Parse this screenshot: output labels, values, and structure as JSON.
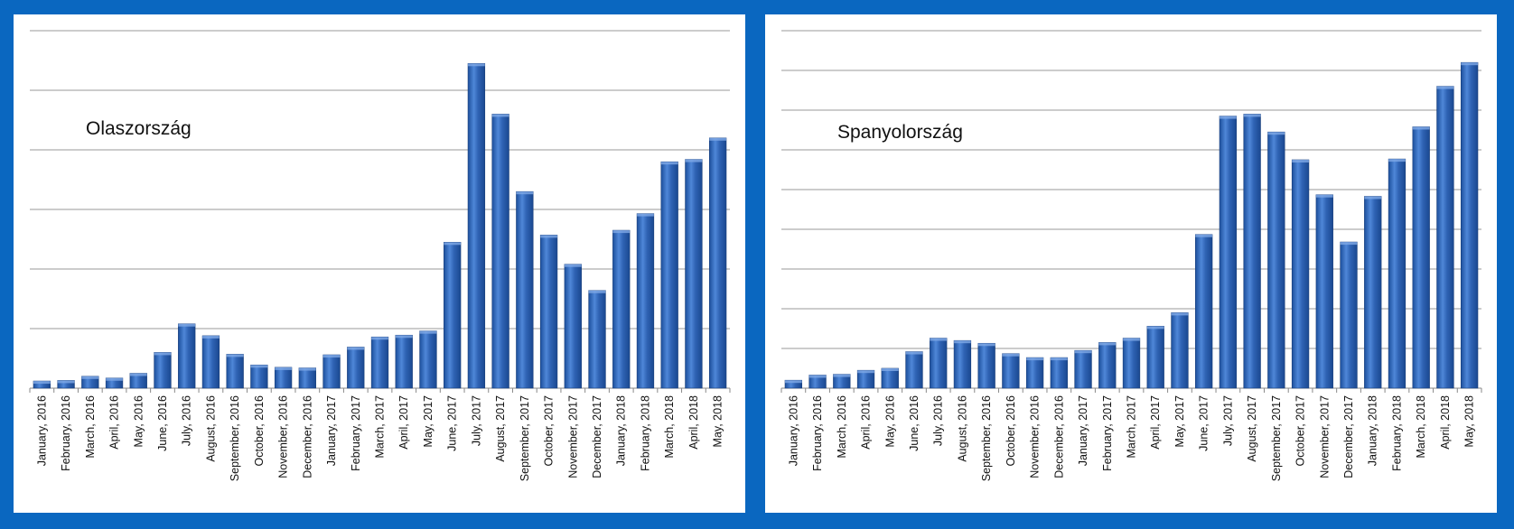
{
  "page": {
    "background": "#0a67c0"
  },
  "chart_data": [
    {
      "type": "bar",
      "title": "Olaszország",
      "xlabel": "",
      "ylabel": "",
      "ylim": [
        0,
        6
      ],
      "grid": true,
      "bar_color": "#2f63b4",
      "categories": [
        "January, 2016",
        "February, 2016",
        "March, 2016",
        "April, 2016",
        "May, 2016",
        "June, 2016",
        "July, 2016",
        "August, 2016",
        "September, 2016",
        "October, 2016",
        "November, 2016",
        "December, 2016",
        "January, 2017",
        "February, 2017",
        "March, 2017",
        "April, 2017",
        "May, 2017",
        "June, 2017",
        "July, 2017",
        "August, 2017",
        "September, 2017",
        "October, 2017",
        "November, 2017",
        "December, 2017",
        "January, 2018",
        "February, 2018",
        "March, 2018",
        "April, 2018",
        "May, 2018"
      ],
      "values": [
        0.12,
        0.13,
        0.2,
        0.17,
        0.25,
        0.6,
        1.08,
        0.88,
        0.57,
        0.39,
        0.35,
        0.34,
        0.56,
        0.69,
        0.86,
        0.89,
        0.96,
        2.45,
        5.45,
        4.6,
        3.3,
        2.57,
        2.08,
        1.64,
        2.65,
        2.93,
        3.8,
        3.84,
        4.2
      ]
    },
    {
      "type": "bar",
      "title": "Spanyolország",
      "xlabel": "",
      "ylabel": "",
      "ylim": [
        0,
        9
      ],
      "grid": true,
      "bar_color": "#2f63b4",
      "categories": [
        "January, 2016",
        "February, 2016",
        "March, 2016",
        "April, 2016",
        "May, 2016",
        "June, 2016",
        "July, 2016",
        "August, 2016",
        "September, 2016",
        "October, 2016",
        "November, 2016",
        "December, 2016",
        "January, 2017",
        "February, 2017",
        "March, 2017",
        "April, 2017",
        "May, 2017",
        "June, 2017",
        "July, 2017",
        "August, 2017",
        "September, 2017",
        "October, 2017",
        "November, 2017",
        "December, 2017",
        "January, 2018",
        "February, 2018",
        "March, 2018",
        "April, 2018",
        "May, 2018"
      ],
      "values": [
        0.2,
        0.33,
        0.35,
        0.45,
        0.5,
        0.92,
        1.26,
        1.2,
        1.13,
        0.87,
        0.77,
        0.77,
        0.95,
        1.15,
        1.26,
        1.56,
        1.9,
        3.87,
        6.85,
        6.9,
        6.45,
        5.75,
        4.87,
        3.68,
        4.83,
        5.77,
        6.58,
        7.6,
        8.2
      ]
    }
  ]
}
